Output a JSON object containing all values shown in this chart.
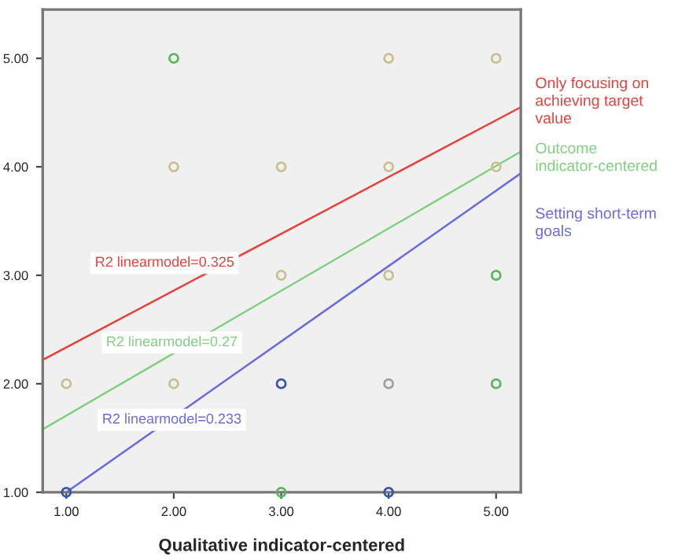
{
  "chart_data": {
    "type": "scatter",
    "xlabel": "Qualitative indicator-centered",
    "xlim": [
      0.78,
      5.23
    ],
    "ylim": [
      1.0,
      5.45
    ],
    "xticks": [
      {
        "value": 1,
        "label": "1.00"
      },
      {
        "value": 2,
        "label": "2.00"
      },
      {
        "value": 3,
        "label": "3.00"
      },
      {
        "value": 4,
        "label": "4.00"
      },
      {
        "value": 5,
        "label": "5.00"
      }
    ],
    "yticks": [
      {
        "value": 1,
        "label": "1.00"
      },
      {
        "value": 2,
        "label": "2.00"
      },
      {
        "value": 3,
        "label": "3.00"
      },
      {
        "value": 4,
        "label": "4.00"
      },
      {
        "value": 5,
        "label": "5.00"
      }
    ],
    "grid": false,
    "marker": "circle",
    "legend": "right",
    "series": [
      {
        "color": "#c8c090",
        "x": [
          1,
          2,
          2,
          3,
          3,
          4,
          4,
          4,
          5,
          5
        ],
        "values": [
          2,
          4,
          2,
          4,
          3,
          5,
          4,
          3,
          5,
          4
        ]
      },
      {
        "color": "#5cb85c",
        "x": [
          2,
          3,
          5,
          5
        ],
        "values": [
          5,
          1,
          3,
          2
        ]
      },
      {
        "color": "#3a56a8",
        "x": [
          1,
          3,
          4
        ],
        "values": [
          1,
          2,
          1
        ]
      },
      {
        "color": "#a0a0a0",
        "x": [
          4
        ],
        "values": [
          2
        ]
      },
      {
        "type": "line",
        "name": "Only focusing on achieving target value",
        "marker": "none",
        "color": "#e8413c",
        "x": [
          0.78,
          5.23
        ],
        "values": [
          2.22,
          4.55
        ]
      },
      {
        "type": "line",
        "name": "Outcome indicator-centered",
        "marker": "none",
        "color": "#7fd07f",
        "x": [
          0.78,
          5.23
        ],
        "values": [
          1.58,
          4.14
        ]
      },
      {
        "type": "line",
        "name": "Setting short-term goals",
        "marker": "none",
        "color": "#6b6be0",
        "x": [
          1.0,
          5.23
        ],
        "values": [
          1.0,
          3.94
        ]
      }
    ],
    "annotations": [
      "R2 linearmodel=0.325",
      "R2 linearmodel=0.27",
      "R2 linearmodel=0.233"
    ]
  }
}
